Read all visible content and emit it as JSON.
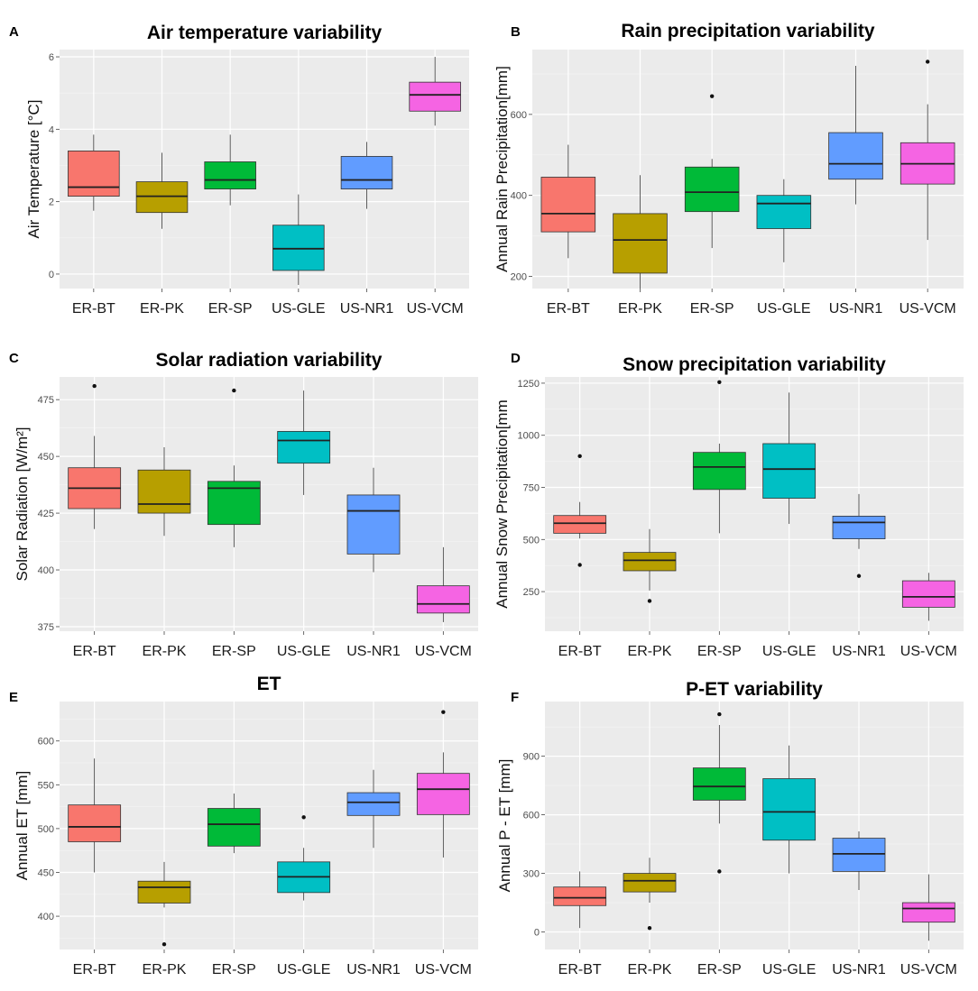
{
  "figure": {
    "categories": [
      "ER-BT",
      "ER-PK",
      "ER-SP",
      "US-GLE",
      "US-NR1",
      "US-VCM"
    ]
  },
  "chart_data": [
    {
      "type": "box",
      "panel": "A",
      "title": "Air temperature variability",
      "ylabel": "Air Temperature [°C]",
      "ylim": [
        -0.4,
        6.2
      ],
      "yticks": [
        0,
        2,
        4,
        6
      ],
      "categories": [
        "ER-BT",
        "ER-PK",
        "ER-SP",
        "US-GLE",
        "US-NR1",
        "US-VCM"
      ],
      "colors": [
        "#F8766D",
        "#B79F00",
        "#00BA38",
        "#00BFC4",
        "#619CFF",
        "#F564E3"
      ],
      "boxes": [
        {
          "min": 1.75,
          "q1": 2.15,
          "median": 2.4,
          "q3": 3.4,
          "max": 3.85,
          "outliers": []
        },
        {
          "min": 1.25,
          "q1": 1.7,
          "median": 2.15,
          "q3": 2.55,
          "max": 3.35,
          "outliers": []
        },
        {
          "min": 1.9,
          "q1": 2.35,
          "median": 2.6,
          "q3": 3.1,
          "max": 3.85,
          "outliers": []
        },
        {
          "min": -0.3,
          "q1": 0.1,
          "median": 0.7,
          "q3": 1.35,
          "max": 2.2,
          "outliers": []
        },
        {
          "min": 1.8,
          "q1": 2.35,
          "median": 2.6,
          "q3": 3.25,
          "max": 3.65,
          "outliers": []
        },
        {
          "min": 4.1,
          "q1": 4.5,
          "median": 4.95,
          "q3": 5.3,
          "max": 6.0,
          "outliers": []
        }
      ]
    },
    {
      "type": "box",
      "panel": "B",
      "title": "Rain precipitation variability",
      "ylabel": "Annual Rain Precipitation[mm]",
      "ylim": [
        170,
        760
      ],
      "yticks": [
        200,
        400,
        600
      ],
      "categories": [
        "ER-BT",
        "ER-PK",
        "ER-SP",
        "US-GLE",
        "US-NR1",
        "US-VCM"
      ],
      "colors": [
        "#F8766D",
        "#B79F00",
        "#00BA38",
        "#00BFC4",
        "#619CFF",
        "#F564E3"
      ],
      "boxes": [
        {
          "min": 245,
          "q1": 310,
          "median": 355,
          "q3": 445,
          "max": 525,
          "outliers": []
        },
        {
          "min": 170,
          "q1": 208,
          "median": 290,
          "q3": 355,
          "max": 450,
          "outliers": []
        },
        {
          "min": 270,
          "q1": 360,
          "median": 408,
          "q3": 470,
          "max": 490,
          "outliers": [
            645
          ]
        },
        {
          "min": 235,
          "q1": 318,
          "median": 380,
          "q3": 400,
          "max": 440,
          "outliers": []
        },
        {
          "min": 378,
          "q1": 440,
          "median": 478,
          "q3": 555,
          "max": 720,
          "outliers": []
        },
        {
          "min": 290,
          "q1": 428,
          "median": 478,
          "q3": 530,
          "max": 625,
          "outliers": [
            730
          ]
        }
      ]
    },
    {
      "type": "box",
      "panel": "C",
      "title": "Solar radiation variability",
      "ylabel": "Solar Radiation [W/m²]",
      "ylim": [
        373,
        485
      ],
      "yticks": [
        375,
        400,
        425,
        450,
        475
      ],
      "categories": [
        "ER-BT",
        "ER-PK",
        "ER-SP",
        "US-GLE",
        "US-NR1",
        "US-VCM"
      ],
      "colors": [
        "#F8766D",
        "#B79F00",
        "#00BA38",
        "#00BFC4",
        "#619CFF",
        "#F564E3"
      ],
      "boxes": [
        {
          "min": 418,
          "q1": 427,
          "median": 436,
          "q3": 445,
          "max": 459,
          "outliers": [
            481
          ]
        },
        {
          "min": 415,
          "q1": 425,
          "median": 429,
          "q3": 444,
          "max": 454,
          "outliers": []
        },
        {
          "min": 410,
          "q1": 420,
          "median": 436,
          "q3": 439,
          "max": 446,
          "outliers": [
            479
          ]
        },
        {
          "min": 433,
          "q1": 447,
          "median": 457,
          "q3": 461,
          "max": 479,
          "outliers": []
        },
        {
          "min": 399,
          "q1": 407,
          "median": 426,
          "q3": 433,
          "max": 445,
          "outliers": []
        },
        {
          "min": 377,
          "q1": 381,
          "median": 385,
          "q3": 393,
          "max": 410,
          "outliers": []
        }
      ]
    },
    {
      "type": "box",
      "panel": "D",
      "title": "Snow precipitation variability",
      "ylabel": "Annual Snow Precipitation[mm",
      "ylim": [
        60,
        1280
      ],
      "yticks": [
        250,
        500,
        750,
        1000,
        1250
      ],
      "categories": [
        "ER-BT",
        "ER-PK",
        "ER-SP",
        "US-GLE",
        "US-NR1",
        "US-VCM"
      ],
      "colors": [
        "#F8766D",
        "#B79F00",
        "#00BA38",
        "#00BFC4",
        "#619CFF",
        "#F564E3"
      ],
      "boxes": [
        {
          "min": 505,
          "q1": 530,
          "median": 578,
          "q3": 615,
          "max": 680,
          "outliers": [
            900,
            378
          ]
        },
        {
          "min": 255,
          "q1": 350,
          "median": 400,
          "q3": 438,
          "max": 550,
          "outliers": [
            205
          ]
        },
        {
          "min": 530,
          "q1": 740,
          "median": 848,
          "q3": 918,
          "max": 960,
          "outliers": [
            1255
          ]
        },
        {
          "min": 575,
          "q1": 698,
          "median": 838,
          "q3": 960,
          "max": 1205,
          "outliers": []
        },
        {
          "min": 455,
          "q1": 503,
          "median": 582,
          "q3": 612,
          "max": 718,
          "outliers": [
            325
          ]
        },
        {
          "min": 110,
          "q1": 175,
          "median": 225,
          "q3": 302,
          "max": 340,
          "outliers": []
        }
      ]
    },
    {
      "type": "box",
      "panel": "E",
      "title": "ET",
      "ylabel": "Annual ET [mm]",
      "ylim": [
        362,
        645
      ],
      "yticks": [
        400,
        450,
        500,
        550,
        600
      ],
      "categories": [
        "ER-BT",
        "ER-PK",
        "ER-SP",
        "US-GLE",
        "US-NR1",
        "US-VCM"
      ],
      "colors": [
        "#F8766D",
        "#B79F00",
        "#00BA38",
        "#00BFC4",
        "#619CFF",
        "#F564E3"
      ],
      "boxes": [
        {
          "min": 450,
          "q1": 485,
          "median": 502,
          "q3": 527,
          "max": 580,
          "outliers": []
        },
        {
          "min": 410,
          "q1": 415,
          "median": 433,
          "q3": 440,
          "max": 462,
          "outliers": [
            368
          ]
        },
        {
          "min": 472,
          "q1": 480,
          "median": 505,
          "q3": 523,
          "max": 540,
          "outliers": []
        },
        {
          "min": 418,
          "q1": 427,
          "median": 445,
          "q3": 462,
          "max": 478,
          "outliers": [
            513
          ]
        },
        {
          "min": 478,
          "q1": 515,
          "median": 530,
          "q3": 541,
          "max": 567,
          "outliers": []
        },
        {
          "min": 467,
          "q1": 516,
          "median": 545,
          "q3": 563,
          "max": 587,
          "outliers": [
            633
          ]
        }
      ]
    },
    {
      "type": "box",
      "panel": "F",
      "title": "P-ET variability",
      "ylabel": "Annual P - ET [mm]",
      "ylim": [
        -90,
        1180
      ],
      "yticks": [
        0,
        300,
        600,
        900
      ],
      "categories": [
        "ER-BT",
        "ER-PK",
        "ER-SP",
        "US-GLE",
        "US-NR1",
        "US-VCM"
      ],
      "colors": [
        "#F8766D",
        "#B79F00",
        "#00BA38",
        "#00BFC4",
        "#619CFF",
        "#F564E3"
      ],
      "boxes": [
        {
          "min": 20,
          "q1": 135,
          "median": 175,
          "q3": 230,
          "max": 310,
          "outliers": []
        },
        {
          "min": 150,
          "q1": 205,
          "median": 262,
          "q3": 300,
          "max": 380,
          "outliers": [
            20
          ]
        },
        {
          "min": 555,
          "q1": 675,
          "median": 745,
          "q3": 840,
          "max": 1060,
          "outliers": [
            1115,
            310
          ]
        },
        {
          "min": 300,
          "q1": 470,
          "median": 615,
          "q3": 785,
          "max": 955,
          "outliers": []
        },
        {
          "min": 215,
          "q1": 310,
          "median": 400,
          "q3": 480,
          "max": 515,
          "outliers": []
        },
        {
          "min": -45,
          "q1": 50,
          "median": 120,
          "q3": 150,
          "max": 295,
          "outliers": []
        }
      ]
    }
  ]
}
